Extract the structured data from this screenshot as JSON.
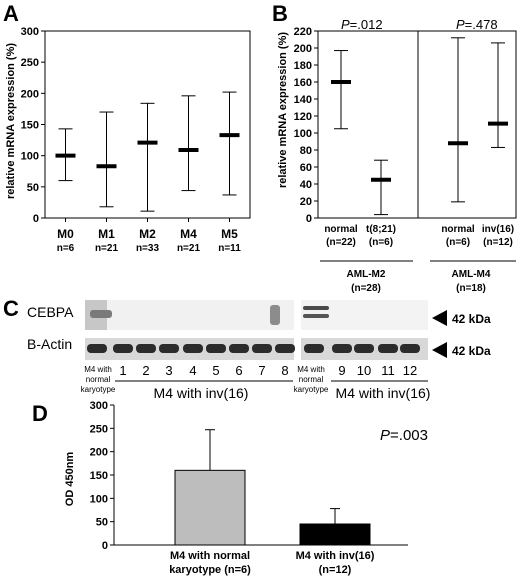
{
  "panel_a": {
    "letter": "A"
  },
  "panel_b": {
    "letter": "B"
  },
  "panel_c": {
    "letter": "C",
    "row_labels": [
      "CEBPA",
      "B-Actin"
    ],
    "kda_labels": [
      "42 kDa",
      "42 kDa"
    ],
    "left_ref_label": [
      "M4 with",
      "normal",
      "karyotype"
    ],
    "left_lanes": [
      "1",
      "2",
      "3",
      "4",
      "5",
      "6",
      "7",
      "8"
    ],
    "left_group": "M4 with inv(16)",
    "right_ref_label": [
      "M4 with",
      "normal",
      "karyotype"
    ],
    "right_lanes": [
      "9",
      "10",
      "11",
      "12"
    ],
    "right_group": "M4 with inv(16)"
  },
  "panel_d": {
    "letter": "D"
  },
  "chart_data": [
    {
      "id": "A",
      "type": "errorbar",
      "ylabel": "relative mRNA expression (%)",
      "ylim": [
        0,
        300
      ],
      "yticks": [
        0,
        50,
        100,
        150,
        200,
        250,
        300
      ],
      "categories": [
        "M0",
        "M1",
        "M2",
        "M4",
        "M5"
      ],
      "sublabels": [
        "n=6",
        "n=21",
        "n=33",
        "n=21",
        "n=11"
      ],
      "values": [
        100,
        83,
        121,
        109,
        133
      ],
      "lower": [
        60,
        18,
        11,
        44,
        37
      ],
      "upper": [
        143,
        170,
        184,
        196,
        202
      ]
    },
    {
      "id": "B",
      "type": "errorbar",
      "ylabel": "relative mRNA expression (%)",
      "ylim": [
        0,
        220
      ],
      "yticks": [
        0,
        20,
        40,
        60,
        80,
        100,
        120,
        140,
        160,
        180,
        200,
        220
      ],
      "categories": [
        "normal",
        "t(8;21)",
        "normal",
        "inv(16)"
      ],
      "sublabels": [
        "(n=22)",
        "(n=6)",
        "(n=6)",
        "(n=12)"
      ],
      "values": [
        160,
        45,
        88,
        111
      ],
      "lower": [
        105,
        4,
        19,
        83
      ],
      "upper": [
        197,
        68,
        212,
        206
      ],
      "groups": [
        {
          "label": "AML-M2",
          "n": "(n=28)",
          "p_text": "=.012"
        },
        {
          "label": "AML-M4",
          "n": "(n=18)",
          "p_text": "=.478"
        }
      ],
      "p_symbol": "P"
    },
    {
      "id": "D",
      "type": "bar",
      "ylabel": "OD 450nm",
      "ylim": [
        0,
        300
      ],
      "yticks": [
        0,
        50,
        100,
        150,
        200,
        250,
        300
      ],
      "categories": [
        "M4 with normal karyotype (n=6)",
        "M4 with inv(16) (n=12)"
      ],
      "category_lines": [
        [
          "M4 with normal",
          "karyotype (n=6)"
        ],
        [
          "M4 with inv(16)",
          "(n=12)"
        ]
      ],
      "values": [
        160,
        45
      ],
      "error_upper": [
        247,
        78
      ],
      "colors": [
        "#bdbdbd",
        "#000000"
      ],
      "p_symbol": "P",
      "p_text": "=.003"
    }
  ]
}
